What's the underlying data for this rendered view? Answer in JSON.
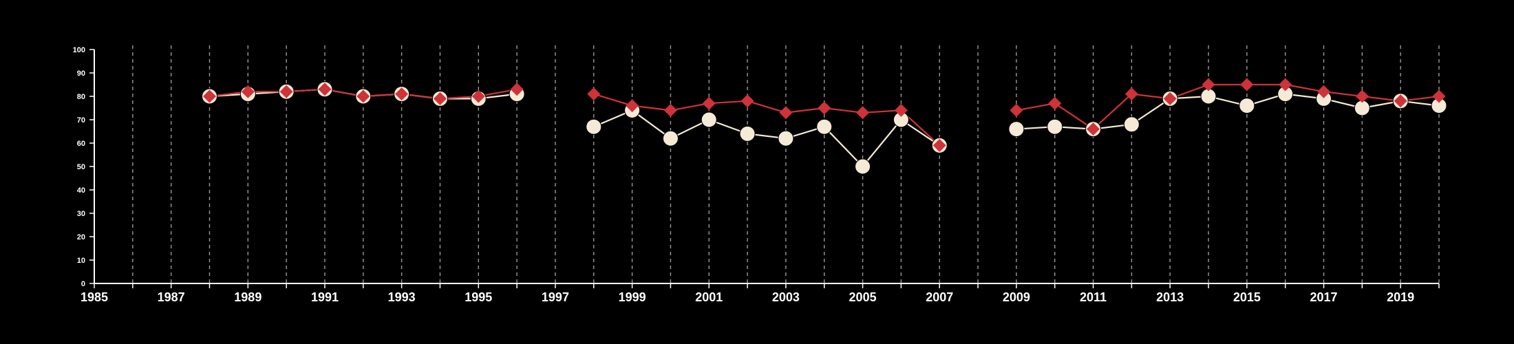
{
  "chart_data": {
    "type": "line",
    "title": "",
    "xlabel": "",
    "ylabel": "",
    "xlim": [
      1985,
      2020
    ],
    "ylim": [
      0,
      100
    ],
    "x_ticks": [
      1985,
      1987,
      1989,
      1991,
      1993,
      1995,
      1997,
      1999,
      2001,
      2003,
      2005,
      2007,
      2009,
      2011,
      2013,
      2015,
      2017,
      2019
    ],
    "y_ticks": [
      0,
      10,
      20,
      30,
      40,
      50,
      60,
      70,
      80,
      90,
      100
    ],
    "vertical_gridlines": "dashed, every year from 1986 to 2020",
    "colors": {
      "background": "#000000",
      "axis": "#ffffff",
      "grid": "#9a9a9a"
    },
    "series": [
      {
        "color": "#f5ead6",
        "marker": "circle",
        "points": [
          [
            1988,
            80
          ],
          [
            1989,
            81
          ],
          [
            1990,
            82
          ],
          [
            1991,
            83
          ],
          [
            1992,
            80
          ],
          [
            1993,
            81
          ],
          [
            1994,
            79
          ],
          [
            1995,
            79
          ],
          [
            1996,
            81
          ],
          [
            1998,
            67
          ],
          [
            1999,
            74
          ],
          [
            2000,
            62
          ],
          [
            2001,
            70
          ],
          [
            2002,
            64
          ],
          [
            2003,
            62
          ],
          [
            2004,
            67
          ],
          [
            2005,
            50
          ],
          [
            2006,
            70
          ],
          [
            2007,
            59
          ],
          [
            2009,
            66
          ],
          [
            2010,
            67
          ],
          [
            2011,
            66
          ],
          [
            2012,
            68
          ],
          [
            2013,
            79
          ],
          [
            2014,
            80
          ],
          [
            2015,
            76
          ],
          [
            2016,
            81
          ],
          [
            2017,
            79
          ],
          [
            2018,
            75
          ],
          [
            2019,
            78
          ],
          [
            2020,
            76
          ]
        ]
      },
      {
        "color": "#d0323a",
        "marker": "diamond",
        "points": [
          [
            1988,
            80
          ],
          [
            1989,
            82
          ],
          [
            1990,
            82
          ],
          [
            1991,
            83
          ],
          [
            1992,
            80
          ],
          [
            1993,
            81
          ],
          [
            1994,
            79
          ],
          [
            1995,
            80
          ],
          [
            1996,
            83
          ],
          [
            1998,
            81
          ],
          [
            1999,
            76
          ],
          [
            2000,
            74
          ],
          [
            2001,
            77
          ],
          [
            2002,
            78
          ],
          [
            2003,
            73
          ],
          [
            2004,
            75
          ],
          [
            2005,
            73
          ],
          [
            2006,
            74
          ],
          [
            2007,
            59
          ],
          [
            2009,
            74
          ],
          [
            2010,
            77
          ],
          [
            2011,
            66
          ],
          [
            2012,
            81
          ],
          [
            2013,
            79
          ],
          [
            2014,
            85
          ],
          [
            2015,
            85
          ],
          [
            2016,
            85
          ],
          [
            2017,
            82
          ],
          [
            2018,
            80
          ],
          [
            2019,
            78
          ],
          [
            2020,
            80
          ]
        ]
      }
    ]
  }
}
